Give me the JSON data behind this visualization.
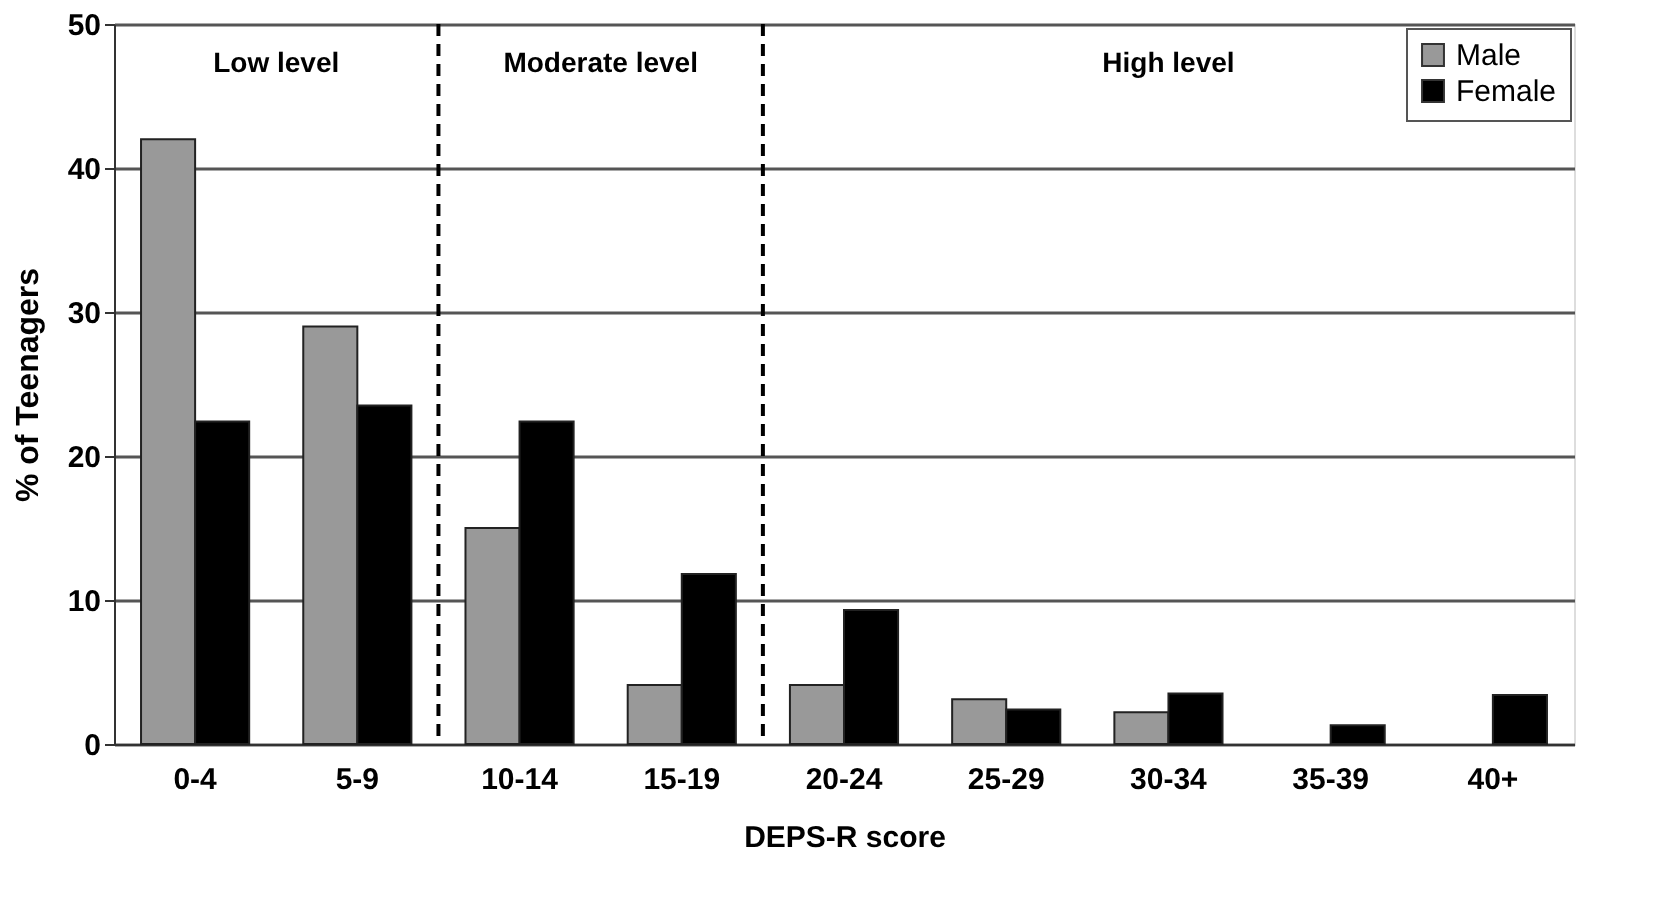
{
  "chart_data": {
    "type": "bar",
    "xlabel": "DEPS-R score",
    "ylabel": "% of Teenagers",
    "categories": [
      "0-4",
      "5-9",
      "10-14",
      "15-19",
      "20-24",
      "25-29",
      "30-34",
      "35-39",
      "40+"
    ],
    "series": [
      {
        "name": "Male",
        "color": "#999999",
        "values": [
          42,
          29,
          15,
          4.1,
          4.1,
          3.1,
          2.2,
          0,
          0
        ]
      },
      {
        "name": "Female",
        "color": "#000000",
        "values": [
          22.4,
          23.5,
          22.4,
          11.8,
          9.3,
          2.4,
          3.5,
          1.3,
          3.4
        ]
      }
    ],
    "ylim": [
      0,
      50
    ],
    "yticks": [
      0,
      10,
      20,
      30,
      40,
      50
    ],
    "grid": "y",
    "legend": "top right",
    "annotations": [
      "Low level",
      "Moderate level",
      "High level"
    ]
  }
}
